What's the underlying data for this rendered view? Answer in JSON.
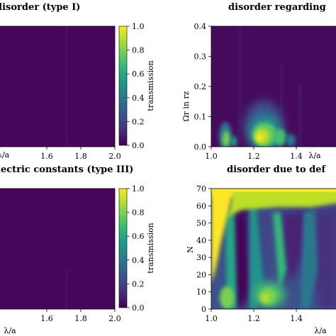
{
  "chart_data": [
    {
      "type": "heatmap",
      "id": "top-left",
      "title": "disorder (type I)",
      "xlabel": "",
      "ylabel": "",
      "xlim": [
        1.0,
        2.0
      ],
      "x_ticks": [
        "1.6",
        "1.8",
        "2.0"
      ],
      "colorbar": {
        "label": "transmission",
        "ticks": [
          "0.0",
          "0.2",
          "0.4",
          "0.6",
          "0.8",
          "1.0"
        ],
        "range": [
          0.0,
          1.0
        ]
      },
      "appearance": "uniformly low transmission (~0.02) across the visible area"
    },
    {
      "type": "heatmap",
      "id": "top-right",
      "title": "disorder regarding",
      "xlabel": "λ/a",
      "ylabel": "Ωr in rz",
      "xlim": [
        1.0,
        1.5
      ],
      "ylim": [
        0.0,
        0.4
      ],
      "x_ticks": [
        "1.0",
        "1.2",
        "1.4"
      ],
      "y_ticks": [
        "0.0",
        "0.1",
        "0.2",
        "0.3",
        "0.4"
      ],
      "hotspots": [
        {
          "x": 1.07,
          "y": 0.02,
          "level": 0.55
        },
        {
          "x": 1.32,
          "y": 0.03,
          "level": 0.95
        },
        {
          "x": 1.38,
          "y": 0.06,
          "level": 0.6
        }
      ]
    },
    {
      "type": "heatmap",
      "id": "bottom-left",
      "title": "lectric constants (type III)",
      "xlabel": "λ/a",
      "ylabel": "",
      "xlim": [
        1.0,
        2.0
      ],
      "x_ticks": [
        "1.6",
        "1.8",
        "2.0"
      ],
      "colorbar": {
        "label": "transmission",
        "ticks": [
          "0.0",
          "0.2",
          "0.4",
          "0.6",
          "0.8",
          "1.0"
        ],
        "range": [
          0.0,
          1.0
        ]
      },
      "appearance": "uniformly low transmission (~0.02) across the visible area"
    },
    {
      "type": "heatmap",
      "id": "bottom-right",
      "title": "disorder due to def",
      "xlabel": "λ/a",
      "ylabel": "N",
      "xlim": [
        1.0,
        1.5
      ],
      "ylim": [
        0,
        70
      ],
      "x_ticks": [
        "1.0",
        "1.2",
        "1.4"
      ],
      "y_ticks": [
        "0",
        "10",
        "20",
        "30",
        "40",
        "50",
        "60",
        "70"
      ],
      "appearance": "high transmission band at N 60-70 for λ/a < 1.1, decaying with N; transmission stripes at low N"
    }
  ]
}
